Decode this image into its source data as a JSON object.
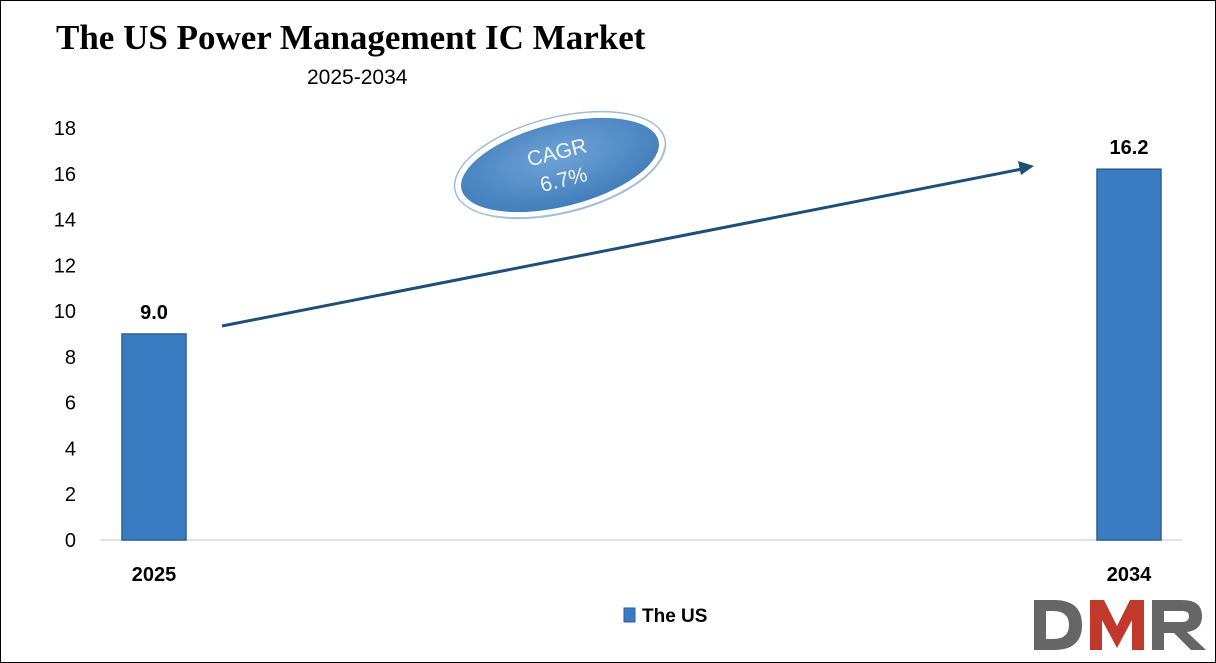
{
  "chart_data": {
    "type": "bar",
    "title": "The US Power Management IC Market",
    "subtitle": "2025-2034",
    "categories": [
      "2025",
      "2034"
    ],
    "series": [
      {
        "name": "The US",
        "values": [
          9.0,
          16.2
        ],
        "data_labels": [
          "9.0",
          "16.2"
        ]
      }
    ],
    "xlabel": "",
    "ylabel": "",
    "ylim": [
      0,
      18
    ],
    "yticks": [
      "0",
      "2",
      "4",
      "6",
      "8",
      "10",
      "12",
      "14",
      "16",
      "18"
    ],
    "grid": false,
    "legend_position": "bottom-center",
    "annotation": {
      "line1": "CAGR",
      "line2": "6.7%"
    },
    "colors": {
      "bar": "#3a7cc1",
      "bar_edge": "#2a5e96",
      "arrow": "#1f4e79",
      "ellipse": "#5b93c9"
    }
  },
  "logo": {
    "text": "DMR",
    "colors": {
      "d": "#666666",
      "m": "#c0392b",
      "r": "#666666"
    }
  }
}
